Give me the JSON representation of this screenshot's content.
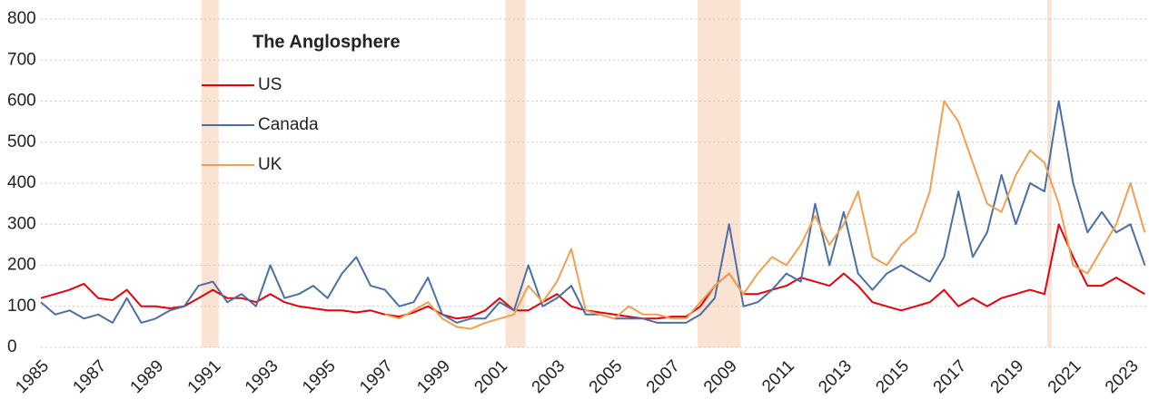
{
  "chart_data": {
    "type": "line",
    "legend_title": "The Anglosphere",
    "x": [
      1985,
      1985.5,
      1986,
      1986.5,
      1987,
      1987.5,
      1988,
      1988.5,
      1989,
      1989.5,
      1990,
      1990.5,
      1991,
      1991.5,
      1992,
      1992.5,
      1993,
      1993.5,
      1994,
      1994.5,
      1995,
      1995.5,
      1996,
      1996.5,
      1997,
      1997.5,
      1998,
      1998.5,
      1999,
      1999.5,
      2000,
      2000.5,
      2001,
      2001.5,
      2002,
      2002.5,
      2003,
      2003.5,
      2004,
      2004.5,
      2005,
      2005.5,
      2006,
      2006.5,
      2007,
      2007.5,
      2008,
      2008.5,
      2009,
      2009.5,
      2010,
      2010.5,
      2011,
      2011.5,
      2012,
      2012.5,
      2013,
      2013.5,
      2014,
      2014.5,
      2015,
      2015.5,
      2016,
      2016.5,
      2017,
      2017.5,
      2018,
      2018.5,
      2019,
      2019.5,
      2020,
      2020.5,
      2021,
      2021.5,
      2022,
      2022.5,
      2023,
      2023.5
    ],
    "series": [
      {
        "name": "US",
        "color": "#e8000b",
        "values": [
          120,
          130,
          140,
          155,
          120,
          115,
          140,
          100,
          100,
          95,
          100,
          120,
          140,
          120,
          120,
          110,
          130,
          110,
          100,
          95,
          90,
          90,
          85,
          90,
          80,
          75,
          85,
          100,
          80,
          70,
          75,
          90,
          120,
          90,
          90,
          110,
          130,
          100,
          90,
          85,
          80,
          75,
          70,
          70,
          75,
          75,
          100,
          150,
          180,
          130,
          130,
          140,
          150,
          170,
          160,
          150,
          180,
          150,
          110,
          100,
          90,
          100,
          110,
          140,
          100,
          120,
          100,
          120,
          130,
          140,
          130,
          300,
          220,
          150,
          150,
          170,
          150,
          130
        ]
      },
      {
        "name": "Canada",
        "color": "#4a6fa5",
        "values": [
          110,
          80,
          90,
          70,
          80,
          60,
          120,
          60,
          70,
          90,
          100,
          150,
          160,
          110,
          130,
          100,
          200,
          120,
          130,
          150,
          120,
          180,
          220,
          150,
          140,
          100,
          110,
          170,
          80,
          60,
          70,
          70,
          110,
          90,
          200,
          100,
          120,
          150,
          80,
          80,
          70,
          70,
          70,
          60,
          60,
          60,
          80,
          120,
          300,
          100,
          110,
          140,
          180,
          160,
          350,
          200,
          330,
          180,
          140,
          180,
          200,
          180,
          160,
          220,
          380,
          220,
          280,
          420,
          300,
          400,
          380,
          600,
          400,
          280,
          330,
          280,
          300,
          200
        ]
      },
      {
        "name": "UK",
        "color": "#f0a050",
        "values": [
          null,
          null,
          null,
          null,
          null,
          null,
          null,
          null,
          null,
          null,
          null,
          null,
          null,
          null,
          null,
          null,
          null,
          null,
          null,
          null,
          null,
          null,
          null,
          null,
          80,
          70,
          90,
          110,
          70,
          50,
          45,
          60,
          70,
          80,
          150,
          110,
          160,
          240,
          90,
          80,
          70,
          100,
          80,
          80,
          70,
          70,
          110,
          150,
          180,
          130,
          180,
          220,
          200,
          250,
          320,
          250,
          300,
          380,
          220,
          200,
          250,
          280,
          380,
          600,
          550,
          450,
          350,
          330,
          420,
          480,
          450,
          350,
          200,
          180,
          240,
          300,
          400,
          280
        ]
      }
    ],
    "shaded_periods": [
      [
        1990.6,
        1991.2
      ],
      [
        2001.2,
        2001.9
      ],
      [
        2007.9,
        2009.4
      ],
      [
        2020.1,
        2020.25
      ]
    ],
    "shade_color": "#fbe3d3",
    "xlim": [
      1985,
      2023.55
    ],
    "xticks": [
      1985,
      1987,
      1989,
      1991,
      1993,
      1995,
      1997,
      1999,
      2001,
      2003,
      2005,
      2007,
      2009,
      2011,
      2013,
      2015,
      2017,
      2019,
      2021,
      2023
    ],
    "ylim": [
      0,
      800
    ],
    "yticks": [
      0,
      100,
      200,
      300,
      400,
      500,
      600,
      700,
      800
    ],
    "grid": true
  }
}
